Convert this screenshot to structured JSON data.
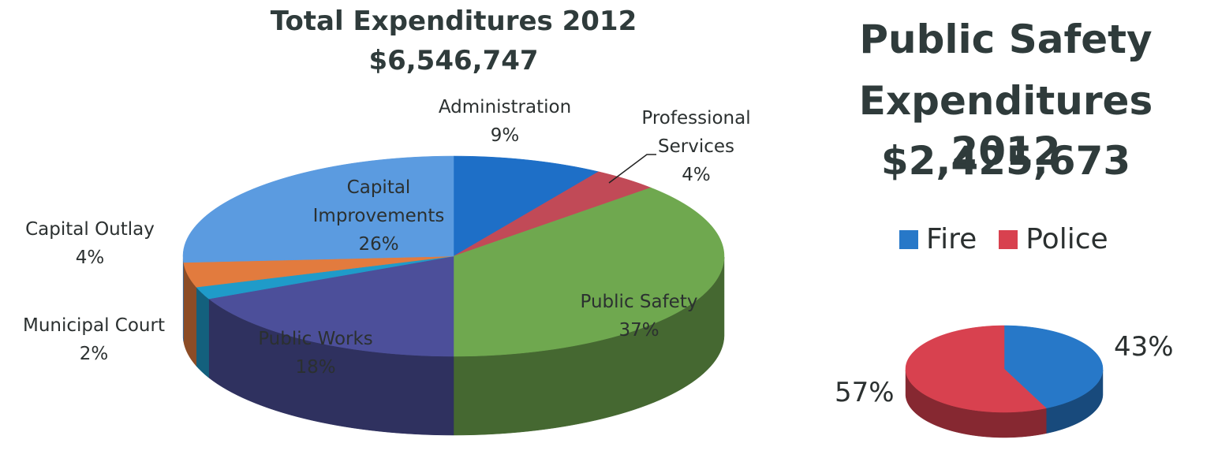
{
  "chart_data": [
    {
      "type": "pie",
      "title": "Total Expenditures 2012",
      "subtitle": "$6,546,747",
      "slices": [
        {
          "label": "Administration",
          "percent_label": "9%",
          "value": 9,
          "color": "#1e6fc7"
        },
        {
          "label": "Professional Services",
          "percent_label": "4%",
          "value": 4,
          "color": "#c14a57"
        },
        {
          "label": "Public Safety",
          "percent_label": "37%",
          "value": 37,
          "color": "#6fa84f"
        },
        {
          "label": "Public Works",
          "percent_label": "18%",
          "value": 18,
          "color": "#4c4f9a"
        },
        {
          "label": "Municipal Court",
          "percent_label": "2%",
          "value": 2,
          "color": "#1f9bc9"
        },
        {
          "label": "Capital Outlay",
          "percent_label": "4%",
          "value": 4,
          "color": "#e27b3e"
        },
        {
          "label": "Capital Improvements",
          "percent_label": "26%",
          "value": 26,
          "color": "#5b9be0"
        }
      ]
    },
    {
      "type": "pie",
      "title": "Public Safety Expenditures 2012",
      "subtitle": "$2,425,673",
      "legend": [
        "Fire",
        "Police"
      ],
      "legend_position": "top",
      "slices": [
        {
          "label": "Fire",
          "percent_label": "43%",
          "value": 43,
          "color": "#2778c8"
        },
        {
          "label": "Police",
          "percent_label": "57%",
          "value": 57,
          "color": "#d8414f"
        }
      ]
    }
  ]
}
